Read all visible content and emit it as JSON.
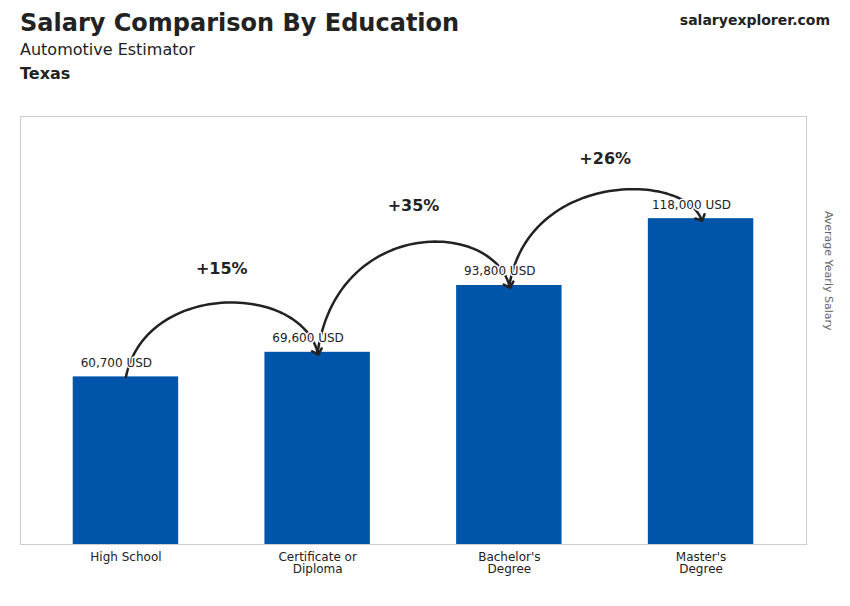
{
  "chart_data": {
    "type": "bar",
    "title": "Salary Comparison By Education",
    "subtitle": "Automotive Estimator",
    "location": "Texas",
    "source": "salaryexplorer.com",
    "ylabel": "Average Yearly Salary",
    "categories": [
      "High School",
      "Certificate or\nDiploma",
      "Bachelor's\nDegree",
      "Master's\nDegree"
    ],
    "values": [
      60700,
      69600,
      93800,
      118000
    ],
    "value_labels": [
      "60,700 USD",
      "69,600 USD",
      "93,800 USD",
      "118,000 USD"
    ],
    "data_labels": true,
    "color": "#0055aa",
    "ylim": [
      0,
      155000
    ],
    "tick_labels": "x",
    "grid": false,
    "annotations": [
      {
        "text": "+15%",
        "from": 0,
        "to": 1,
        "y": 95000
      },
      {
        "text": "+35%",
        "from": 1,
        "to": 2,
        "y": 118000
      },
      {
        "text": "+26%",
        "from": 2,
        "to": 3,
        "y": 135000
      }
    ]
  }
}
